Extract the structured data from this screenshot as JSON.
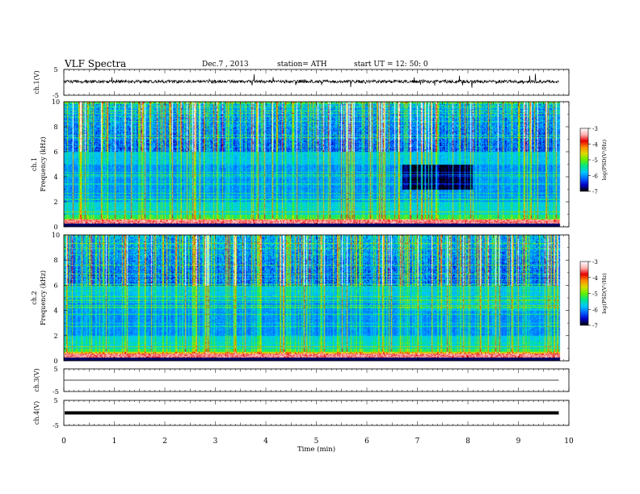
{
  "header": {
    "title": "VLF  Spectra",
    "date": "Dec.7  , 2013",
    "station": "station= ATH",
    "start": "start  UT  =    12: 50: 0"
  },
  "chart_data": [
    {
      "type": "line",
      "panel": "ch1-waveform",
      "ylabel": "ch.1(V)",
      "ylim": [
        -5,
        5
      ],
      "yticks": [
        "5",
        "-5"
      ],
      "xlim": [
        0,
        10
      ],
      "baseline_v": 0.3,
      "data_extent_min": 9.8,
      "color": "#000000"
    },
    {
      "type": "heatmap",
      "panel": "ch1-spectrogram",
      "ylabel": "ch.1\nFrequency (kHz)",
      "ylabel_lines": [
        "ch.1",
        "Frequency (kHz)"
      ],
      "ylim": [
        0,
        10
      ],
      "yticks": [
        "0",
        "2",
        "4",
        "6",
        "8",
        "10"
      ],
      "xlim": [
        0,
        10
      ],
      "data_extent_min": 9.8,
      "colorbar": {
        "label": "log(PSD(V²/Hz)",
        "ticks": [
          "-3",
          "-4",
          "-5",
          "-6",
          "-7"
        ],
        "range": [
          -7,
          -3
        ],
        "colors": [
          "#000000",
          "#0000c8",
          "#0064ff",
          "#00c8ff",
          "#00e68c",
          "#64f000",
          "#dcdc00",
          "#ff8c00",
          "#e60000",
          "#ffb4b4",
          "#ffffff"
        ]
      }
    },
    {
      "type": "heatmap",
      "panel": "ch2-spectrogram",
      "ylabel": "ch.2\nFrequency (kHz)",
      "ylabel_lines": [
        "ch.2",
        "Frequency (kHz)"
      ],
      "ylim": [
        0,
        10
      ],
      "yticks": [
        "0",
        "2",
        "4",
        "6",
        "8",
        "10"
      ],
      "xlim": [
        0,
        10
      ],
      "data_extent_min": 9.8,
      "colorbar": {
        "label": "log(PSD(V²/Hz)",
        "ticks": [
          "-3",
          "-4",
          "-5",
          "-6",
          "-7"
        ],
        "range": [
          -7,
          -3
        ],
        "colors": [
          "#000000",
          "#0000c8",
          "#0064ff",
          "#00c8ff",
          "#00e68c",
          "#64f000",
          "#dcdc00",
          "#ff8c00",
          "#e60000",
          "#ffb4b4",
          "#ffffff"
        ]
      }
    },
    {
      "type": "line",
      "panel": "ch3-waveform",
      "ylabel": "ch.3(V)",
      "ylim": [
        -5,
        5
      ],
      "yticks": [
        "5",
        "-5"
      ],
      "xlim": [
        0,
        10
      ],
      "baseline_v": 0.0,
      "data_extent_min": 9.8,
      "color": "#000000"
    },
    {
      "type": "line",
      "panel": "ch4-waveform",
      "ylabel": "ch.4(V)",
      "ylim": [
        -5,
        5
      ],
      "yticks": [
        "5",
        "-5"
      ],
      "xlim": [
        0,
        10
      ],
      "baseline_v": 0.0,
      "data_extent_min": 9.8,
      "color": "#000000"
    }
  ],
  "xaxis": {
    "label": "Time  (min)",
    "ticks": [
      "0",
      "1",
      "2",
      "3",
      "4",
      "5",
      "6",
      "7",
      "8",
      "9",
      "10"
    ],
    "range": [
      0,
      10
    ]
  }
}
